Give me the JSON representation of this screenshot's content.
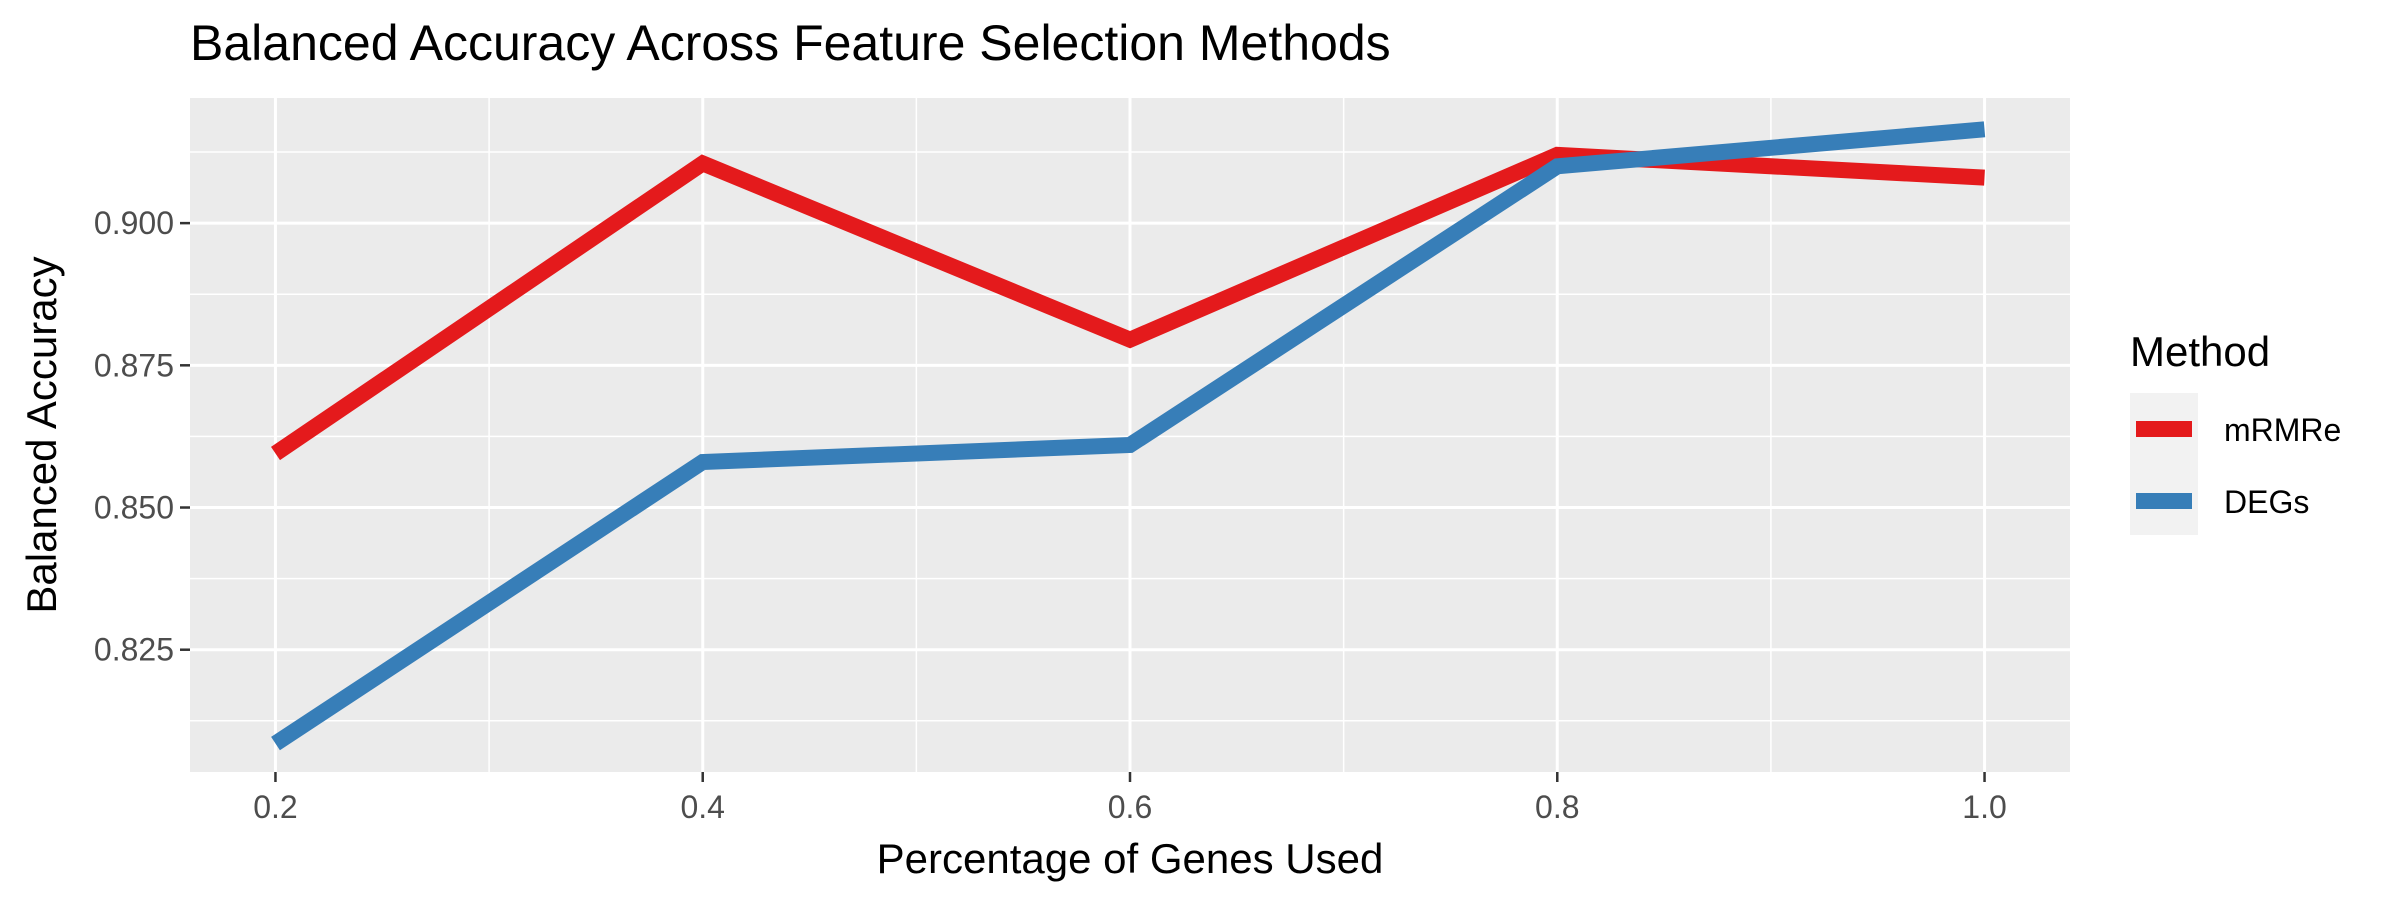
{
  "chart_data": {
    "type": "line",
    "title": "Balanced Accuracy Across Feature Selection Methods",
    "xlabel": "Percentage of Genes Used",
    "ylabel": "Balanced Accuracy",
    "x": [
      0.2,
      0.4,
      0.6,
      0.8,
      1.0
    ],
    "xlim": [
      0.16,
      1.04
    ],
    "ylim": [
      0.8035,
      0.922
    ],
    "x_ticks": [
      0.2,
      0.4,
      0.6,
      0.8,
      1.0
    ],
    "x_tick_labels": [
      "0.2",
      "0.4",
      "0.6",
      "0.8",
      "1.0"
    ],
    "y_ticks": [
      0.825,
      0.85,
      0.875,
      0.9
    ],
    "y_tick_labels": [
      "0.825",
      "0.850",
      "0.875",
      "0.900"
    ],
    "grid": true,
    "legend_title": "Method",
    "legend_position": "right",
    "series": [
      {
        "name": "mRMRe",
        "color": "#E41A1C",
        "values": [
          0.8595,
          0.9105,
          0.8795,
          0.912,
          0.908
        ]
      },
      {
        "name": "DEGs",
        "color": "#377EB8",
        "values": [
          0.8085,
          0.858,
          0.861,
          0.91,
          0.9165
        ]
      }
    ]
  }
}
